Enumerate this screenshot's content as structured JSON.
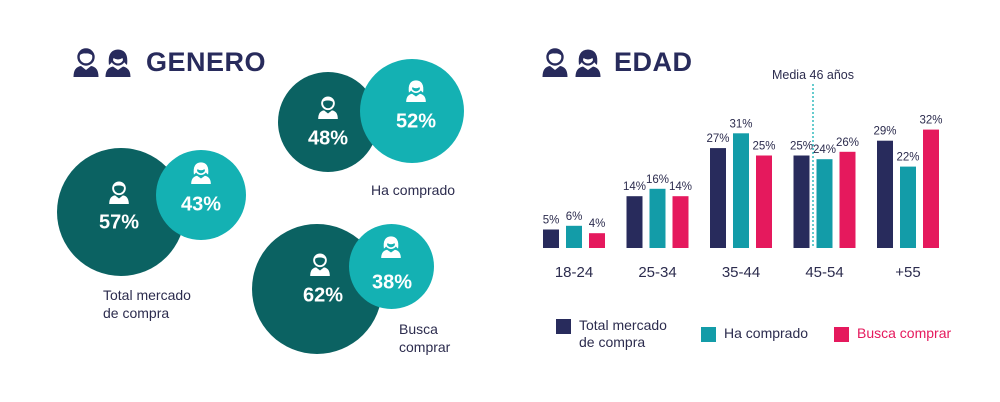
{
  "colors": {
    "navy": "#282b5c",
    "dark_teal": "#0b6262",
    "teal": "#14b1b3",
    "bar_teal": "#139ca8",
    "magenta": "#e5195d",
    "text": "#2c2c4e"
  },
  "genero": {
    "title": "GENERO",
    "groups": [
      {
        "id": "total",
        "label": "Total mercado de compra",
        "label_lines": [
          "Total mercado",
          "de compra"
        ],
        "male_pct": "57%",
        "female_pct": "43%"
      },
      {
        "id": "ha_comprado",
        "label": "Ha comprado",
        "label_lines": [
          "Ha comprado"
        ],
        "male_pct": "48%",
        "female_pct": "52%"
      },
      {
        "id": "busca_comprar",
        "label": "Busca comprar",
        "label_lines": [
          "Busca",
          "comprar"
        ],
        "male_pct": "62%",
        "female_pct": "38%"
      }
    ]
  },
  "edad": {
    "title": "EDAD"
  },
  "chart_data": {
    "type": "bar",
    "title": "EDAD",
    "categories": [
      "18-24",
      "25-34",
      "35-44",
      "45-54",
      "+55"
    ],
    "series": [
      {
        "name": "Total mercado de compra",
        "color": "#282b5c",
        "values": [
          5,
          14,
          27,
          25,
          29
        ],
        "labels": [
          "5%",
          "14%",
          "27%",
          "25%",
          "29%"
        ]
      },
      {
        "name": "Ha comprado",
        "color": "#139ca8",
        "values": [
          6,
          16,
          31,
          24,
          22
        ],
        "labels": [
          "6%",
          "16%",
          "31%",
          "24%",
          "22%"
        ]
      },
      {
        "name": "Busca comprar",
        "color": "#e5195d",
        "values": [
          4,
          14,
          25,
          26,
          32
        ],
        "labels": [
          "4%",
          "14%",
          "25%",
          "26%",
          "32%"
        ]
      }
    ],
    "annotation": {
      "text": "Media 46 años",
      "category": "45-54"
    },
    "legend": {
      "placement": "bottom",
      "items": [
        {
          "lines": [
            "Total mercado",
            "de compra"
          ],
          "color": "#282b5c"
        },
        {
          "lines": [
            "Ha comprado"
          ],
          "color": "#139ca8"
        },
        {
          "lines": [
            "Busca comprar"
          ],
          "color": "#e5195d"
        }
      ]
    },
    "grid": false
  }
}
